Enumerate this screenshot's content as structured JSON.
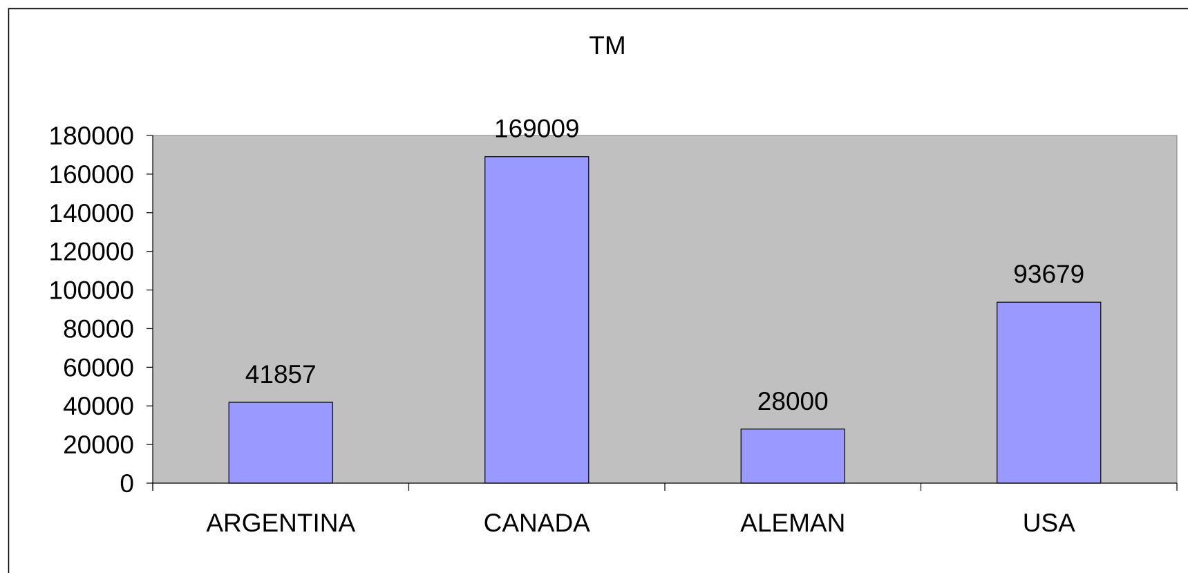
{
  "chart_data": {
    "type": "bar",
    "title": "TM",
    "xlabel": "",
    "ylabel": "",
    "categories": [
      "ARGENTINA",
      "CANADA",
      "ALEMAN",
      "USA"
    ],
    "values": [
      41857,
      169009,
      28000,
      93679
    ],
    "ylim": [
      0,
      180000
    ],
    "yticks": [
      "0",
      "20000",
      "40000",
      "60000",
      "80000",
      "100000",
      "120000",
      "140000",
      "160000",
      "180000"
    ],
    "data_labels": [
      "41857",
      "169009",
      "28000",
      "93679"
    ],
    "grid": false,
    "legend": "none",
    "colors": {
      "plot_background": "#c0c0c0",
      "bar_fill": "#9999ff",
      "bar_stroke": "#000000",
      "axis": "#000000",
      "chart_background": "#ffffff"
    }
  }
}
